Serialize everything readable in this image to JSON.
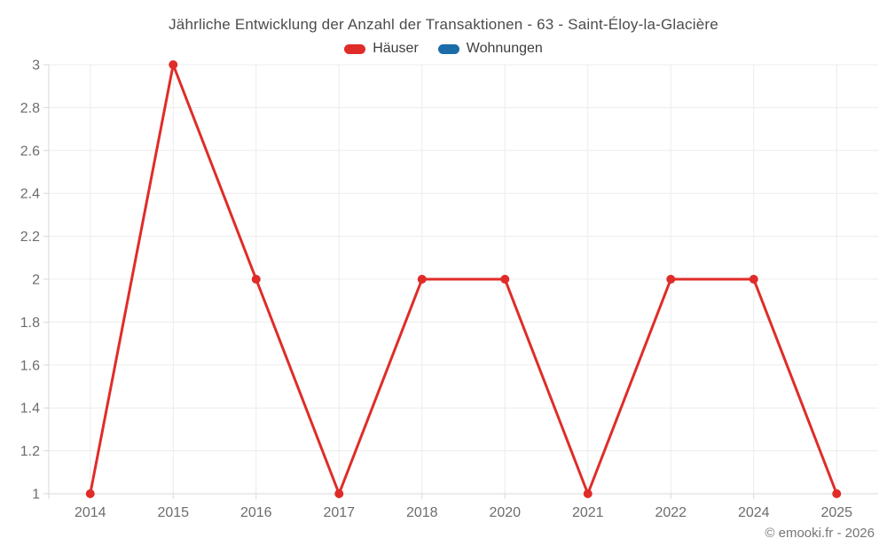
{
  "title": "Jährliche Entwicklung der Anzahl der Transaktionen - 63 - Saint-Éloy-la-Glacière",
  "legend": {
    "items": [
      {
        "label": "Häuser",
        "color": "#e02c28"
      },
      {
        "label": "Wohnungen",
        "color": "#1b6ca8"
      }
    ]
  },
  "chart_data": {
    "type": "line",
    "title": "Jährliche Entwicklung der Anzahl der Transaktionen - 63 - Saint-Éloy-la-Glacière",
    "categories": [
      "2014",
      "2015",
      "2016",
      "2017",
      "2018",
      "2020",
      "2021",
      "2022",
      "2024",
      "2025"
    ],
    "series": [
      {
        "name": "Hauser",
        "label": "Häuser",
        "color": "#e02c28",
        "values": [
          1,
          3,
          2,
          1,
          2,
          2,
          1,
          2,
          2,
          1
        ]
      },
      {
        "name": "Wohnungen",
        "label": "Wohnungen",
        "color": "#1b6ca8",
        "values": []
      }
    ],
    "xlabel": "",
    "ylabel": "",
    "ylim": [
      1,
      3
    ],
    "ytick_values": [
      1,
      1.2,
      1.4,
      1.6,
      1.8,
      2,
      2.2,
      2.4,
      2.6,
      2.8,
      3
    ],
    "ytick_labels": [
      "1",
      "1.2",
      "1.4",
      "1.6",
      "1.8",
      "2",
      "2.2",
      "2.4",
      "2.6",
      "2.8",
      "3"
    ],
    "grid": true,
    "legend_position": "top"
  },
  "footer": {
    "copyright": "© emooki.fr - 2026"
  }
}
